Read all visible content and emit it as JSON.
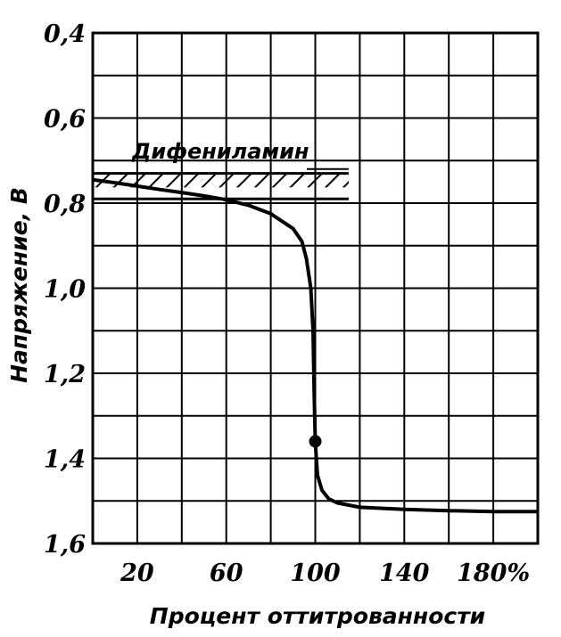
{
  "chart_data": {
    "type": "line",
    "xlabel": "Процент оттитрованности",
    "ylabel": "Напряжение, В",
    "xlim": [
      0,
      200
    ],
    "ylim": [
      0.4,
      1.6
    ],
    "y_inverted": true,
    "grid": true,
    "x_ticks": [
      {
        "value": 20,
        "label": "20"
      },
      {
        "value": 60,
        "label": "60"
      },
      {
        "value": 100,
        "label": "100"
      },
      {
        "value": 140,
        "label": "140"
      },
      {
        "value": 180,
        "label": "180%"
      }
    ],
    "y_ticks": [
      {
        "value": 0.4,
        "label": "0,4"
      },
      {
        "value": 0.6,
        "label": "0,6"
      },
      {
        "value": 0.8,
        "label": "0,8"
      },
      {
        "value": 1.0,
        "label": "1,0"
      },
      {
        "value": 1.2,
        "label": "1,2"
      },
      {
        "value": 1.4,
        "label": "1,4"
      },
      {
        "value": 1.6,
        "label": "1,6"
      }
    ],
    "series": [
      {
        "x": [
          0,
          10,
          20,
          30,
          40,
          50,
          60,
          70,
          80,
          90,
          94,
          96,
          98,
          99,
          99.5,
          100,
          100.5,
          101,
          103,
          106,
          110,
          120,
          140,
          160,
          180,
          200
        ],
        "y": [
          0.745,
          0.752,
          0.76,
          0.768,
          0.775,
          0.783,
          0.792,
          0.805,
          0.825,
          0.86,
          0.89,
          0.93,
          1.0,
          1.1,
          1.25,
          1.36,
          1.4,
          1.44,
          1.475,
          1.495,
          1.505,
          1.515,
          1.52,
          1.523,
          1.525,
          1.525
        ]
      }
    ],
    "markers": [
      {
        "x": 100,
        "y": 1.36
      }
    ],
    "indicator_band": {
      "label": "Дифениламин",
      "x_range": [
        0,
        115
      ],
      "y_range": [
        0.73,
        0.79
      ]
    }
  }
}
